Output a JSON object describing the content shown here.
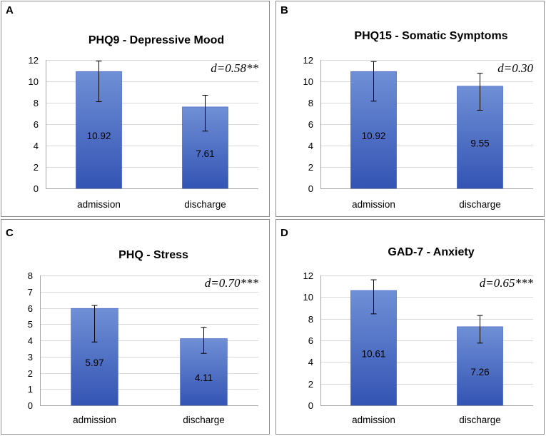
{
  "figure": {
    "bar_color_top": "#6f8fd6",
    "bar_color_bottom": "#3454b4",
    "bar_stroke": "#3a5bbf"
  },
  "chart_data": [
    {
      "panel": "A",
      "type": "bar",
      "title": "PHQ9 - Depressive Mood",
      "effect": "d=0.58**",
      "categories": [
        "admission",
        "discharge"
      ],
      "values": [
        10.92,
        7.61
      ],
      "value_labels": [
        "10.92",
        "7.61"
      ],
      "error_low": [
        8.1,
        5.35
      ],
      "error_high": [
        11.9,
        8.7
      ],
      "ylim": [
        0,
        12
      ],
      "yticks": [
        0,
        2,
        4,
        6,
        8,
        10,
        12
      ],
      "ytick_labels": [
        "0",
        "2",
        "4",
        "6",
        "8",
        "10",
        "12"
      ],
      "xlabel": "",
      "ylabel": ""
    },
    {
      "panel": "B",
      "type": "bar",
      "title": "PHQ15 - Somatic Symptoms",
      "effect": "d=0.30",
      "categories": [
        "admission",
        "discharge"
      ],
      "values": [
        10.92,
        9.55
      ],
      "value_labels": [
        "10.92",
        "9.55"
      ],
      "error_low": [
        8.15,
        7.3
      ],
      "error_high": [
        11.85,
        10.75
      ],
      "ylim": [
        0,
        12
      ],
      "yticks": [
        0,
        2,
        4,
        6,
        8,
        10,
        12
      ],
      "ytick_labels": [
        "0",
        "2",
        "4",
        "6",
        "8",
        "10",
        "12"
      ],
      "xlabel": "",
      "ylabel": ""
    },
    {
      "panel": "C",
      "type": "bar",
      "title": "PHQ - Stress",
      "effect": "d=0.70***",
      "categories": [
        "admission",
        "discharge"
      ],
      "values": [
        5.97,
        4.11
      ],
      "value_labels": [
        "5.97",
        "4.11"
      ],
      "error_low": [
        3.9,
        3.2
      ],
      "error_high": [
        6.15,
        4.8
      ],
      "ylim": [
        0,
        8
      ],
      "yticks": [
        0,
        1,
        2,
        3,
        4,
        5,
        6,
        7,
        8
      ],
      "ytick_labels": [
        "0",
        "1",
        "2",
        "3",
        "4",
        "5",
        "6",
        "7",
        "8"
      ],
      "xlabel": "",
      "ylabel": ""
    },
    {
      "panel": "D",
      "type": "bar",
      "title": "GAD-7 - Anxiety",
      "effect": "d=0.65***",
      "categories": [
        "admission",
        "discharge"
      ],
      "values": [
        10.61,
        7.26
      ],
      "value_labels": [
        "10.61",
        "7.26"
      ],
      "error_low": [
        8.45,
        5.75
      ],
      "error_high": [
        11.6,
        8.3
      ],
      "ylim": [
        0,
        12
      ],
      "yticks": [
        0,
        2,
        4,
        6,
        8,
        10,
        12
      ],
      "ytick_labels": [
        "0",
        "2",
        "4",
        "6",
        "8",
        "10",
        "12"
      ],
      "xlabel": "",
      "ylabel": ""
    }
  ]
}
